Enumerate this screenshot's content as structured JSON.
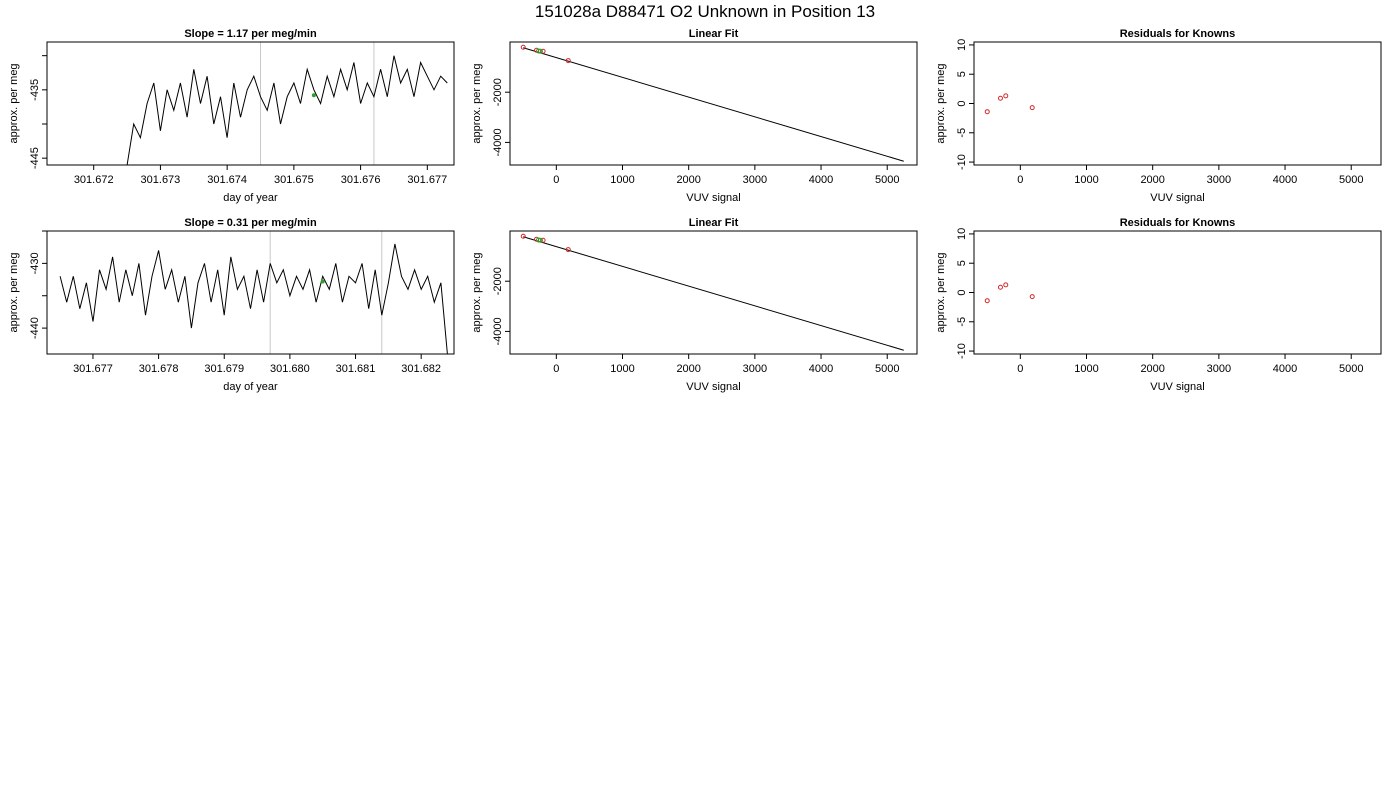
{
  "figure_title": "151028a      D88471   O2 Unknown in Position  13",
  "colors": {
    "trace": "#000000",
    "vline": "#c8c8c8",
    "known_point": "#d62728",
    "unknown_point": "#2ca02c",
    "fit_line": "#000000"
  },
  "chart_data": [
    {
      "type": "line",
      "title": "Slope =  1.17  per meg/min",
      "xlabel": "day of year",
      "ylabel": "approx. per meg",
      "xlim": [
        301.6713,
        301.6774
      ],
      "ylim": [
        -446,
        -428
      ],
      "xticks": [
        301.672,
        301.673,
        301.674,
        301.675,
        301.676,
        301.677
      ],
      "xtick_labels": [
        "301.672",
        "301.673",
        "301.674",
        "301.675",
        "301.676",
        "301.677"
      ],
      "yticks": [
        -445,
        -440,
        -435,
        -430
      ],
      "ytick_labels": [
        "-445",
        "",
        "-435",
        ""
      ],
      "vlines": [
        301.6745,
        301.6762
      ],
      "marker": {
        "x": 301.6753,
        "y": -435.8
      },
      "x": [
        301.6725,
        301.6726,
        301.6727,
        301.6728,
        301.6729,
        301.673,
        301.6731,
        301.6732,
        301.6733,
        301.6734,
        301.6735,
        301.6736,
        301.6737,
        301.6738,
        301.6739,
        301.674,
        301.6741,
        301.6742,
        301.6743,
        301.6744,
        301.6745,
        301.6746,
        301.6747,
        301.6748,
        301.6749,
        301.675,
        301.6751,
        301.6752,
        301.6753,
        301.6754,
        301.6755,
        301.6756,
        301.6757,
        301.6758,
        301.6759,
        301.676,
        301.6761,
        301.6762,
        301.6763,
        301.6764,
        301.6765,
        301.6766,
        301.6767,
        301.6768,
        301.6769,
        301.677,
        301.6771,
        301.6772,
        301.6773
      ],
      "values": [
        -446,
        -440,
        -442,
        -437,
        -434,
        -441,
        -435,
        -438,
        -434,
        -439,
        -432,
        -437,
        -433,
        -440,
        -436,
        -442,
        -434,
        -439,
        -435,
        -433,
        -436,
        -438,
        -434,
        -440,
        -436,
        -434,
        -437,
        -432,
        -435,
        -437,
        -433,
        -436,
        -432,
        -435,
        -431,
        -437,
        -434,
        -436,
        -432,
        -436,
        -430,
        -434,
        -432,
        -436,
        -431,
        -433,
        -435,
        -433,
        -434
      ]
    },
    {
      "type": "scatter",
      "title": "Linear Fit",
      "xlabel": "VUV signal",
      "ylabel": "approx. per meg",
      "xlim": [
        -700,
        5450
      ],
      "ylim": [
        -4900,
        0
      ],
      "xticks": [
        0,
        1000,
        2000,
        3000,
        4000,
        5000
      ],
      "xtick_labels": [
        "0",
        "1000",
        "2000",
        "3000",
        "4000",
        "5000"
      ],
      "yticks": [
        -4000,
        -2000
      ],
      "ytick_labels": [
        "-4000",
        "-2000"
      ],
      "knowns": {
        "x": [
          -500,
          -300,
          -200,
          180
        ],
        "y": [
          -210,
          -330,
          -370,
          -740
        ]
      },
      "unknowns": {
        "x": [
          -270,
          -240
        ],
        "y": [
          -360,
          -370
        ]
      },
      "fit_line": {
        "x": [
          -500,
          5250
        ],
        "y": [
          -230,
          -4750
        ]
      }
    },
    {
      "type": "scatter",
      "title": "Residuals for Knowns",
      "xlabel": "VUV signal",
      "ylabel": "approx. per meg",
      "xlim": [
        -700,
        5450
      ],
      "ylim": [
        -10.5,
        10.5
      ],
      "xticks": [
        0,
        1000,
        2000,
        3000,
        4000,
        5000
      ],
      "xtick_labels": [
        "0",
        "1000",
        "2000",
        "3000",
        "4000",
        "5000"
      ],
      "yticks": [
        -10,
        -5,
        0,
        5,
        10
      ],
      "ytick_labels": [
        "-10",
        "-5",
        "0",
        "5",
        "10"
      ],
      "knowns": {
        "x": [
          -500,
          -300,
          -220,
          180
        ],
        "y": [
          -1.4,
          0.9,
          1.3,
          -0.7
        ]
      }
    },
    {
      "type": "line",
      "title": "Slope =  0.31  per meg/min",
      "xlabel": "day of year",
      "ylabel": "approx. per meg",
      "xlim": [
        301.6763,
        301.6825
      ],
      "ylim": [
        -444,
        -425
      ],
      "xticks": [
        301.677,
        301.678,
        301.679,
        301.68,
        301.681,
        301.682
      ],
      "xtick_labels": [
        "301.677",
        "301.678",
        "301.679",
        "301.680",
        "301.681",
        "301.682"
      ],
      "yticks": [
        -440,
        -435,
        -430,
        -425
      ],
      "ytick_labels": [
        "-440",
        "",
        "-430",
        ""
      ],
      "vlines": [
        301.6797,
        301.6814
      ],
      "marker": {
        "x": 301.6805,
        "y": -432.8
      },
      "x": [
        301.6765,
        301.6766,
        301.6767,
        301.6768,
        301.6769,
        301.677,
        301.6771,
        301.6772,
        301.6773,
        301.6774,
        301.6775,
        301.6776,
        301.6777,
        301.6778,
        301.6779,
        301.678,
        301.6781,
        301.6782,
        301.6783,
        301.6784,
        301.6785,
        301.6786,
        301.6787,
        301.6788,
        301.6789,
        301.679,
        301.6791,
        301.6792,
        301.6793,
        301.6794,
        301.6795,
        301.6796,
        301.6797,
        301.6798,
        301.6799,
        301.68,
        301.6801,
        301.6802,
        301.6803,
        301.6804,
        301.6805,
        301.6806,
        301.6807,
        301.6808,
        301.6809,
        301.681,
        301.6811,
        301.6812,
        301.6813,
        301.6814,
        301.6815,
        301.6816,
        301.6817,
        301.6818,
        301.6819,
        301.682,
        301.6821,
        301.6822,
        301.6823,
        301.6824
      ],
      "values": [
        -432,
        -436,
        -432,
        -437,
        -433,
        -439,
        -431,
        -434,
        -429,
        -436,
        -431,
        -435,
        -430,
        -438,
        -432,
        -428,
        -434,
        -431,
        -436,
        -432,
        -440,
        -433,
        -430,
        -436,
        -431,
        -438,
        -429,
        -434,
        -432,
        -437,
        -431,
        -436,
        -430,
        -433,
        -431,
        -435,
        -432,
        -434,
        -431,
        -436,
        -432,
        -434,
        -430,
        -436,
        -432,
        -433,
        -430,
        -437,
        -431,
        -438,
        -433,
        -427,
        -432,
        -434,
        -431,
        -434,
        -432,
        -436,
        -433,
        -444
      ]
    },
    {
      "type": "scatter",
      "title": "Linear Fit",
      "xlabel": "VUV signal",
      "ylabel": "approx. per meg",
      "xlim": [
        -700,
        5450
      ],
      "ylim": [
        -4900,
        0
      ],
      "xticks": [
        0,
        1000,
        2000,
        3000,
        4000,
        5000
      ],
      "xtick_labels": [
        "0",
        "1000",
        "2000",
        "3000",
        "4000",
        "5000"
      ],
      "yticks": [
        -4000,
        -2000
      ],
      "ytick_labels": [
        "-4000",
        "-2000"
      ],
      "knowns": {
        "x": [
          -500,
          -300,
          -200,
          180
        ],
        "y": [
          -210,
          -330,
          -370,
          -740
        ]
      },
      "unknowns": {
        "x": [
          -270,
          -240
        ],
        "y": [
          -360,
          -370
        ]
      },
      "fit_line": {
        "x": [
          -500,
          5250
        ],
        "y": [
          -230,
          -4750
        ]
      }
    },
    {
      "type": "scatter",
      "title": "Residuals for Knowns",
      "xlabel": "VUV signal",
      "ylabel": "approx. per meg",
      "xlim": [
        -700,
        5450
      ],
      "ylim": [
        -10.5,
        10.5
      ],
      "xticks": [
        0,
        1000,
        2000,
        3000,
        4000,
        5000
      ],
      "xtick_labels": [
        "0",
        "1000",
        "2000",
        "3000",
        "4000",
        "5000"
      ],
      "yticks": [
        -10,
        -5,
        0,
        5,
        10
      ],
      "ytick_labels": [
        "-10",
        "-5",
        "0",
        "5",
        "10"
      ],
      "knowns": {
        "x": [
          -500,
          -300,
          -220,
          180
        ],
        "y": [
          -1.4,
          0.9,
          1.3,
          -0.7
        ]
      }
    }
  ]
}
